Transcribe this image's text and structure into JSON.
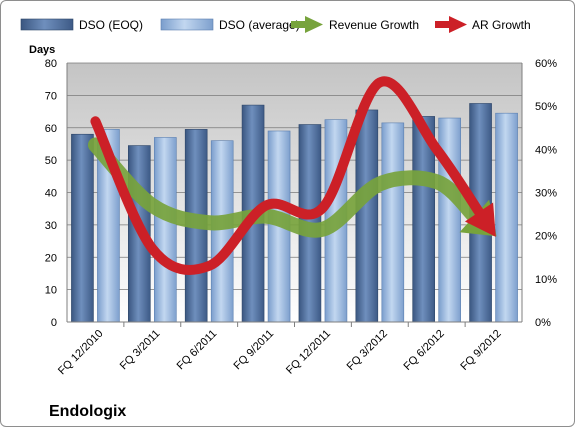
{
  "chart_data": {
    "type": "bar",
    "company_label": "Endologix",
    "y_left_label": "Days",
    "categories": [
      "FQ 12/2010",
      "FQ 3/2011",
      "FQ 6/2011",
      "FQ 9/2011",
      "FQ 12/2011",
      "FQ 3/2012",
      "FQ 6/2012",
      "FQ 9/2012"
    ],
    "ylim_left": [
      0,
      80
    ],
    "yticks_left": [
      "0",
      "10",
      "20",
      "30",
      "40",
      "50",
      "60",
      "70",
      "80"
    ],
    "ylim_right": [
      0,
      60
    ],
    "yticks_right": [
      "0%",
      "10%",
      "20%",
      "30%",
      "40%",
      "50%",
      "60%"
    ],
    "grid": "horizontal",
    "legend_position": "top",
    "series": [
      {
        "name": "DSO (EOQ)",
        "kind": "bar",
        "axis": "left",
        "color": "#4f6d9a",
        "values": [
          58,
          54.5,
          59.5,
          67,
          61,
          65.5,
          63.5,
          67.5
        ]
      },
      {
        "name": "DSO (average)",
        "kind": "bar",
        "axis": "left",
        "color": "#95b4dd",
        "values": [
          59.5,
          57,
          56,
          59,
          62.5,
          61.5,
          63,
          64.5
        ]
      },
      {
        "name": "Revenue Growth",
        "kind": "arrow-line",
        "axis": "right",
        "color": "#77a33c",
        "values": [
          41,
          27,
          23,
          24.5,
          21.5,
          32,
          32.5,
          20.5
        ]
      },
      {
        "name": "AR Growth",
        "kind": "arrow-line",
        "axis": "right",
        "color": "#cc2027",
        "values": [
          46.5,
          17,
          13,
          27,
          26.5,
          55.5,
          40,
          20.5
        ]
      }
    ]
  }
}
